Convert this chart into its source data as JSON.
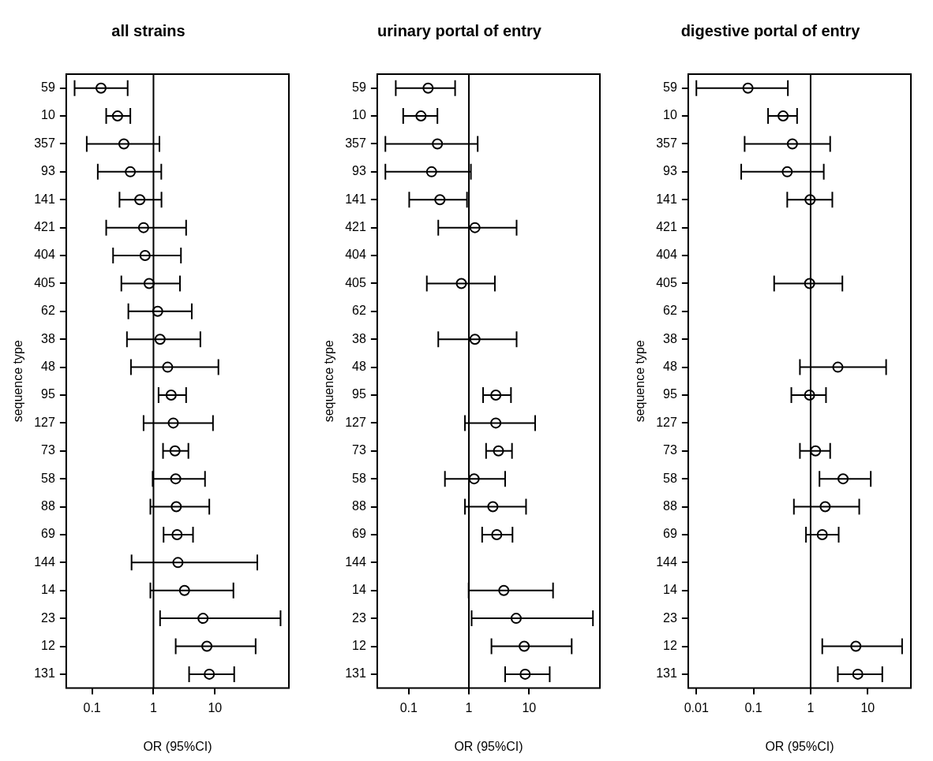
{
  "chart_data": [
    {
      "type": "scatter",
      "orientation": "horizontal",
      "title": "all strains",
      "xlabel": "OR (95%CI)",
      "ylabel": "sequence type",
      "log": "x",
      "marker": "circle",
      "color": "#000000",
      "grid": false,
      "categories": [
        "59",
        "10",
        "357",
        "93",
        "141",
        "421",
        "404",
        "405",
        "62",
        "38",
        "48",
        "95",
        "127",
        "73",
        "58",
        "88",
        "69",
        "144",
        "14",
        "23",
        "12",
        "131"
      ],
      "values": [
        0.14,
        0.26,
        0.33,
        0.42,
        0.6,
        0.69,
        0.73,
        0.85,
        1.17,
        1.28,
        1.7,
        1.94,
        2.1,
        2.24,
        2.3,
        2.35,
        2.42,
        2.5,
        3.2,
        6.4,
        7.4,
        8.1
      ],
      "errors": [
        [
          0.052,
          0.38
        ],
        [
          0.17,
          0.42
        ],
        [
          0.082,
          1.25
        ],
        [
          0.124,
          1.34
        ],
        [
          0.28,
          1.35
        ],
        [
          0.17,
          3.4
        ],
        [
          0.22,
          2.8
        ],
        [
          0.3,
          2.7
        ],
        [
          0.39,
          4.2
        ],
        [
          0.37,
          5.8
        ],
        [
          0.43,
          11.4
        ],
        [
          1.21,
          3.4
        ],
        [
          0.69,
          9.3
        ],
        [
          1.43,
          3.7
        ],
        [
          0.97,
          6.9
        ],
        [
          0.89,
          8.1
        ],
        [
          1.46,
          4.4
        ],
        [
          0.44,
          49
        ],
        [
          0.89,
          20
        ],
        [
          1.28,
          117
        ],
        [
          2.3,
          46
        ],
        [
          3.8,
          20.6
        ]
      ],
      "xlim": [
        0.038,
        160
      ],
      "xticks": [
        0.1,
        1,
        10
      ],
      "ref_lines": [
        {
          "axis": "x",
          "value": 1
        }
      ]
    },
    {
      "type": "scatter",
      "orientation": "horizontal",
      "title": "urinary portal of entry",
      "xlabel": "OR (95%CI)",
      "ylabel": "sequence type",
      "log": "x",
      "marker": "circle",
      "color": "#000000",
      "grid": false,
      "categories": [
        "59",
        "10",
        "357",
        "93",
        "141",
        "421",
        "404",
        "405",
        "62",
        "38",
        "48",
        "95",
        "127",
        "73",
        "58",
        "88",
        "69",
        "144",
        "14",
        "23",
        "12",
        "131"
      ],
      "values": [
        0.21,
        0.16,
        0.3,
        0.24,
        0.33,
        1.26,
        null,
        0.75,
        null,
        1.26,
        null,
        2.8,
        2.8,
        3.1,
        1.22,
        2.5,
        2.9,
        null,
        3.8,
        6.1,
        8.3,
        8.6
      ],
      "errors": [
        [
          0.061,
          0.59
        ],
        [
          0.081,
          0.3
        ],
        [
          0.041,
          1.4
        ],
        [
          0.041,
          1.08
        ],
        [
          0.102,
          0.93
        ],
        [
          0.31,
          6.2
        ],
        null,
        [
          0.2,
          2.7
        ],
        null,
        [
          0.31,
          6.2
        ],
        null,
        [
          1.72,
          5
        ],
        [
          0.86,
          12.6
        ],
        [
          1.93,
          5.2
        ],
        [
          0.4,
          4
        ],
        [
          0.86,
          8.9
        ],
        [
          1.66,
          5.3
        ],
        null,
        [
          0.99,
          25
        ],
        [
          1.11,
          115
        ],
        [
          2.37,
          51
        ],
        [
          4,
          22
        ]
      ],
      "xlim": [
        0.03,
        150
      ],
      "xticks": [
        0.1,
        1,
        10
      ],
      "ref_lines": [
        {
          "axis": "x",
          "value": 1
        }
      ]
    },
    {
      "type": "scatter",
      "orientation": "horizontal",
      "title": "digestive portal of entry",
      "xlabel": "OR (95%CI)",
      "ylabel": "sequence type",
      "log": "x",
      "marker": "circle",
      "color": "#000000",
      "grid": false,
      "categories": [
        "59",
        "10",
        "357",
        "93",
        "141",
        "421",
        "404",
        "405",
        "62",
        "38",
        "48",
        "95",
        "127",
        "73",
        "58",
        "88",
        "69",
        "144",
        "14",
        "23",
        "12",
        "131"
      ],
      "values": [
        0.08,
        0.33,
        0.48,
        0.39,
        0.98,
        null,
        null,
        0.96,
        null,
        null,
        3,
        0.96,
        null,
        1.22,
        3.7,
        1.8,
        1.6,
        null,
        null,
        null,
        6.2,
        6.7
      ],
      "errors": [
        [
          0.01,
          0.4
        ],
        [
          0.18,
          0.58
        ],
        [
          0.07,
          2.2
        ],
        [
          0.061,
          1.7
        ],
        [
          0.39,
          2.4
        ],
        null,
        null,
        [
          0.23,
          3.6
        ],
        null,
        null,
        [
          0.65,
          21
        ],
        [
          0.46,
          1.86
        ],
        null,
        [
          0.65,
          2.2
        ],
        [
          1.43,
          11.3
        ],
        [
          0.51,
          7.1
        ],
        [
          0.83,
          3.1
        ],
        null,
        null,
        null,
        [
          1.6,
          40
        ],
        [
          3,
          18
        ]
      ],
      "xlim": [
        0.0072,
        57
      ],
      "xticks": [
        0.01,
        0.1,
        1,
        10
      ],
      "ref_lines": [
        {
          "axis": "x",
          "value": 1
        }
      ]
    }
  ]
}
